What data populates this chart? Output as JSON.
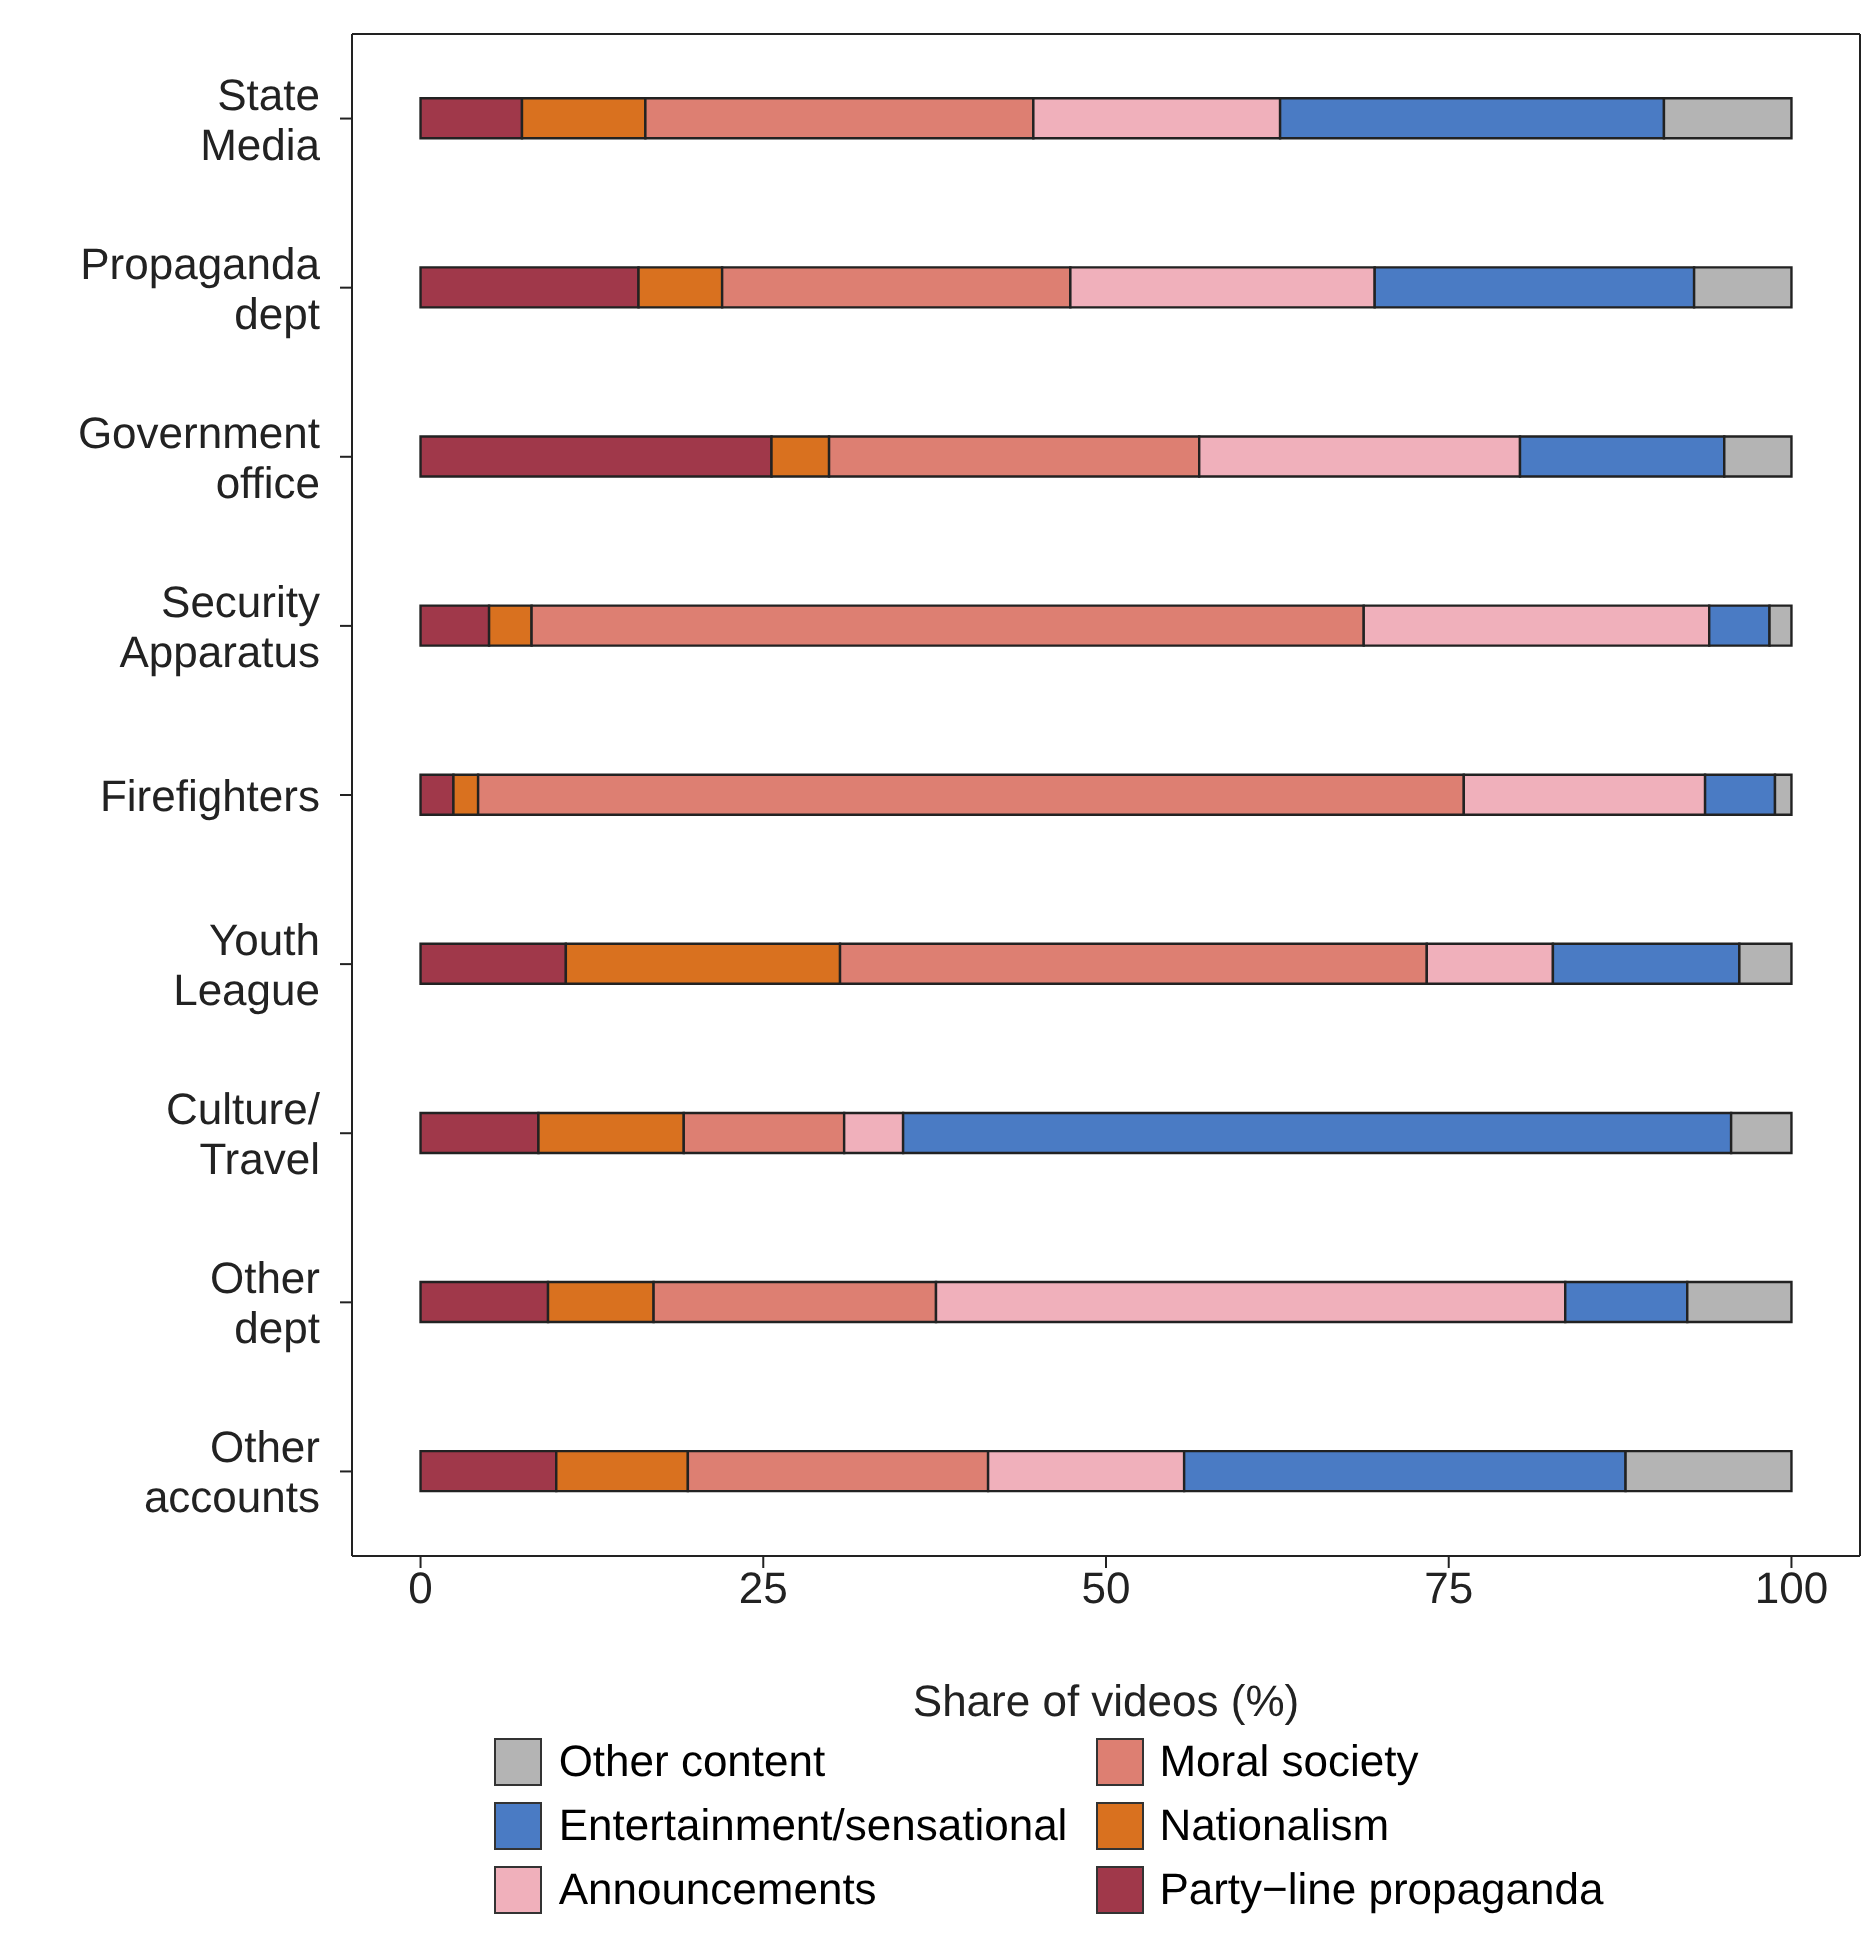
{
  "chart_data": {
    "type": "bar",
    "orientation": "horizontal",
    "stacked": true,
    "xlabel": "Share of videos (%)",
    "categories": [
      "State\nMedia",
      "Propaganda\ndept",
      "Government\noffice",
      "Security\nApparatus",
      "Firefighters",
      "Youth\nLeague",
      "Culture/\nTravel",
      "Other\ndept",
      "Other\naccounts"
    ],
    "series": [
      {
        "name": "Party−line propaganda",
        "color": "#a0384a",
        "values": [
          7.4,
          15.9,
          25.6,
          5.0,
          2.4,
          10.6,
          8.6,
          9.3,
          9.9
        ]
      },
      {
        "name": "Nationalism",
        "color": "#d9711f",
        "values": [
          9.0,
          6.1,
          4.2,
          3.1,
          1.8,
          20.0,
          10.6,
          7.7,
          9.6
        ]
      },
      {
        "name": "Moral society",
        "color": "#dd7f72",
        "values": [
          28.3,
          25.4,
          27.0,
          60.7,
          71.9,
          42.8,
          11.7,
          20.6,
          21.9
        ]
      },
      {
        "name": "Announcements",
        "color": "#f0b0bb",
        "values": [
          18.0,
          22.2,
          23.4,
          25.2,
          17.6,
          9.2,
          4.3,
          45.9,
          14.3
        ]
      },
      {
        "name": "Entertainment/sensational",
        "color": "#4a7bc4",
        "values": [
          28.0,
          23.3,
          14.9,
          4.4,
          5.1,
          13.6,
          60.4,
          8.9,
          32.2
        ]
      },
      {
        "name": "Other content",
        "color": "#b4b4b4",
        "values": [
          9.3,
          7.1,
          4.9,
          1.6,
          1.2,
          3.8,
          4.4,
          7.6,
          12.1
        ]
      }
    ],
    "xlim": [
      -5,
      105
    ],
    "xticks": [
      0,
      25,
      50,
      75,
      100
    ],
    "grid": false,
    "legend": "bottom"
  }
}
